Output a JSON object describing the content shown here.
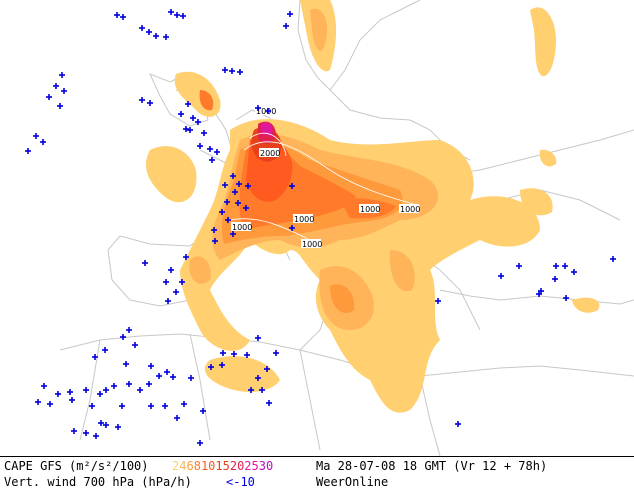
{
  "footer": {
    "line1_left": "CAPE GFS (m²/s²/100)",
    "line2_left": "Vert. wind 700 hPa (hPa/h)",
    "date_text": "Ma 28-07-08 18 GMT (Vr 12 + 78h)",
    "brand": "WeerOnline",
    "vert_wind_legend": "<-10",
    "cape_scale": [
      {
        "label": "2",
        "color": "#ffcf70"
      },
      {
        "label": "4",
        "color": "#ffb45a"
      },
      {
        "label": "6",
        "color": "#ff9a3c"
      },
      {
        "label": "8",
        "color": "#ff7a2a"
      },
      {
        "label": "10",
        "color": "#ff5a1f"
      },
      {
        "label": "15",
        "color": "#e8401a"
      },
      {
        "label": "20",
        "color": "#e02050"
      },
      {
        "label": "25",
        "color": "#e018a0"
      },
      {
        "label": "30",
        "color": "#c010c0"
      }
    ]
  },
  "map": {
    "contour_labels": [
      "1000",
      "2000",
      "1000",
      "1000",
      "1000",
      "1000",
      "1000",
      "1000"
    ],
    "vert_wind_marker_color": "#0000dd",
    "land_border_color": "#c8c8c8"
  }
}
